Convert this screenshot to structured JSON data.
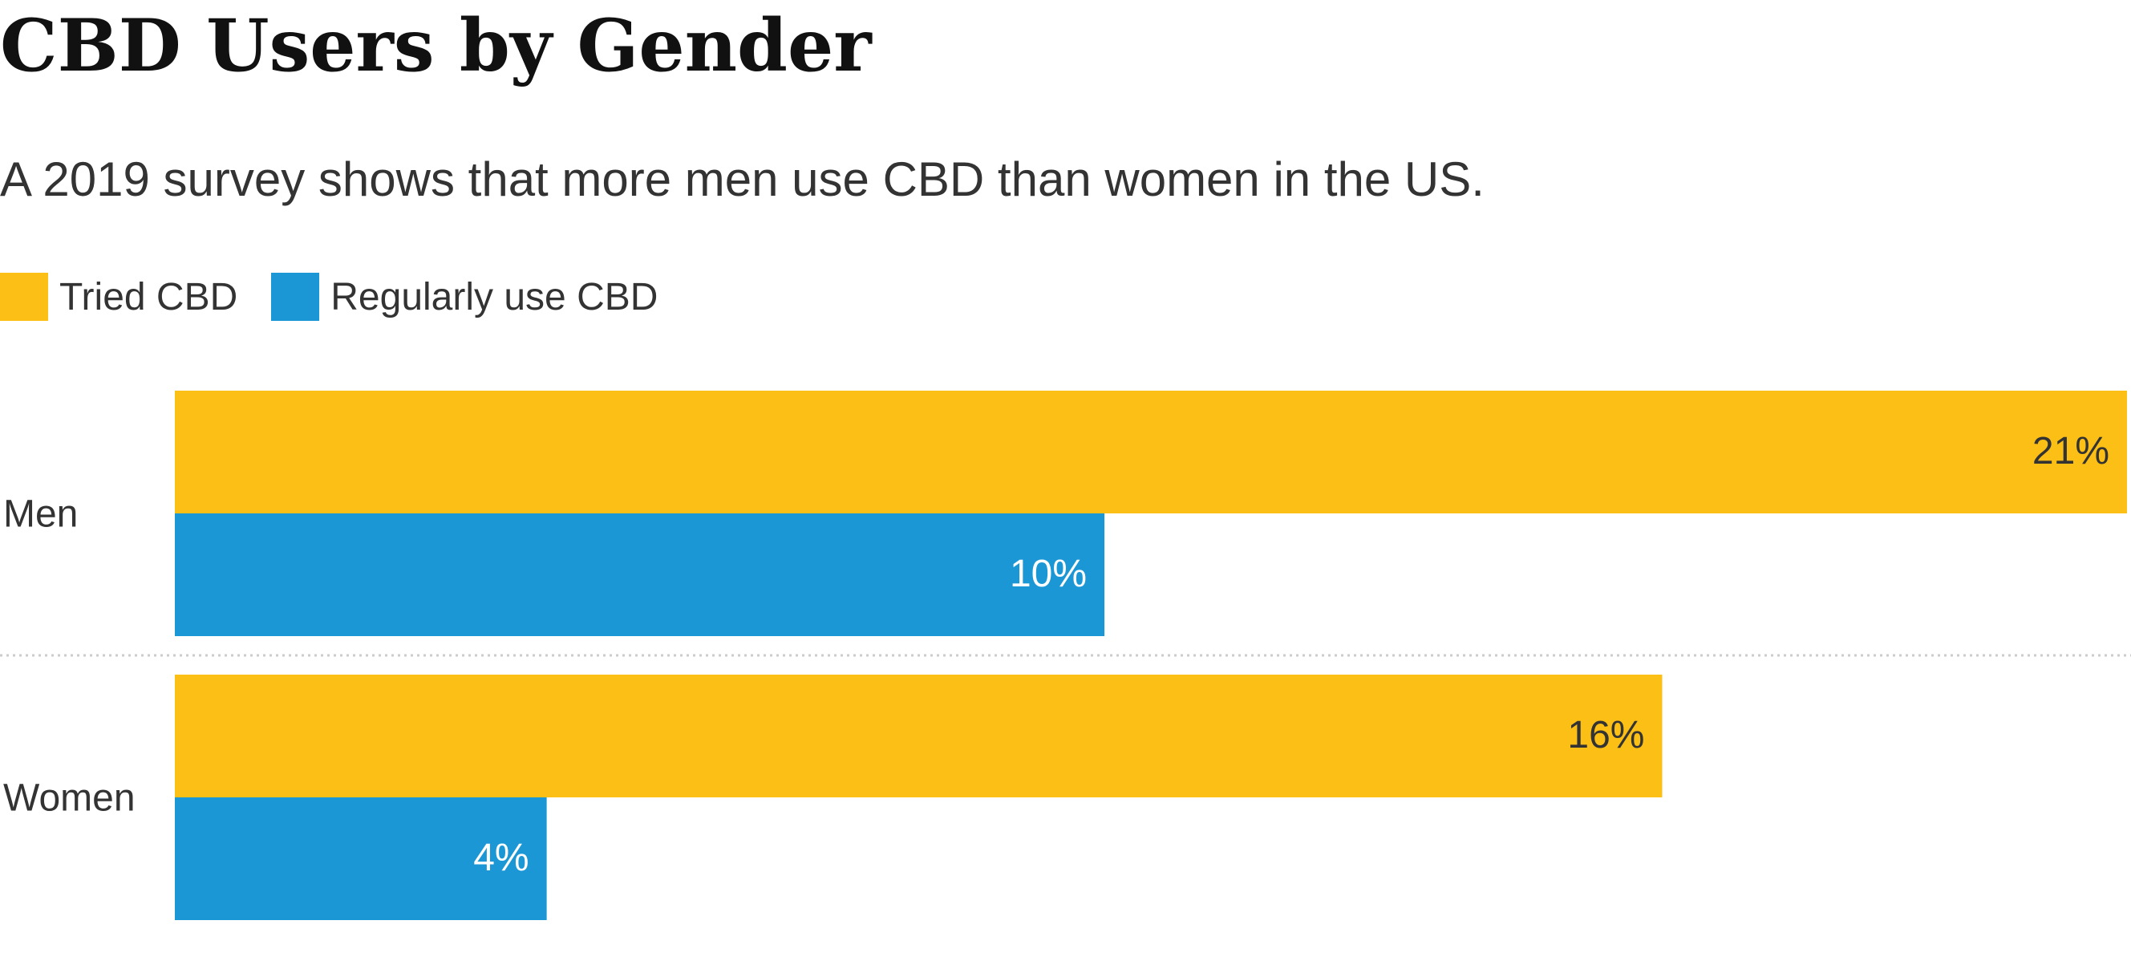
{
  "title": "CBD Users by Gender",
  "subtitle": "A 2019 survey shows that more men use CBD than women in the US.",
  "chart_data": {
    "type": "bar",
    "orientation": "horizontal",
    "title": "CBD Users by Gender",
    "subtitle": "A 2019 survey shows that more men use CBD than women in the US.",
    "categories": [
      "Men",
      "Women"
    ],
    "series": [
      {
        "name": "Tried CBD",
        "color": "#FBBF15",
        "values": [
          21,
          16
        ],
        "labels": [
          "21%",
          "16%"
        ],
        "label_color": "#333333"
      },
      {
        "name": "Regularly use CBD",
        "color": "#1A97D4",
        "values": [
          10,
          4
        ],
        "labels": [
          "10%",
          "4%"
        ],
        "label_color": "#ffffff"
      }
    ],
    "xlim": [
      0,
      21
    ],
    "unit": "%",
    "legend_position": "top-left",
    "grid": false,
    "xlabel": "",
    "ylabel": ""
  }
}
